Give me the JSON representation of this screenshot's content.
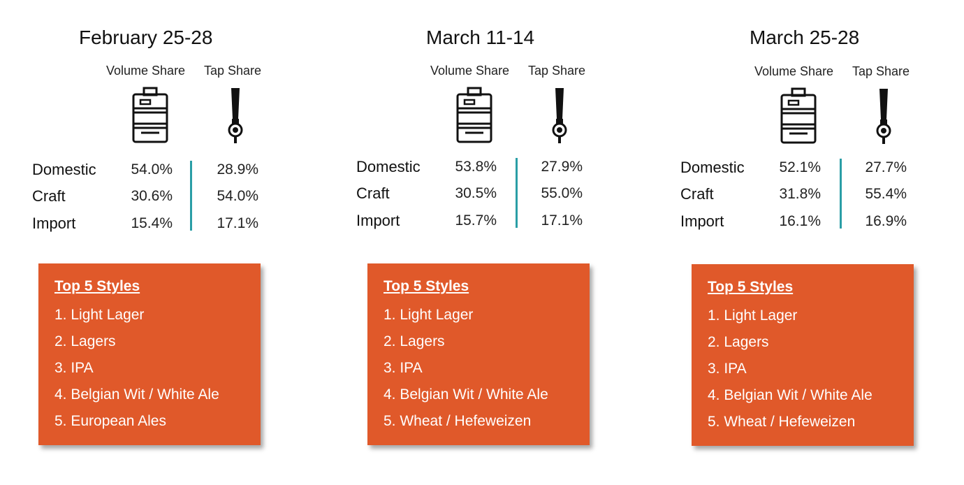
{
  "colors": {
    "accent_box": "#e0592a",
    "divider": "#2a9ea6"
  },
  "icons": {
    "volume": "keg-icon",
    "tap": "beer-tap-handle-icon"
  },
  "periods": [
    {
      "title": "February 25-28",
      "volume_share_label": "Volume Share",
      "tap_share_label": "Tap Share",
      "rows": [
        {
          "label": "Domestic",
          "volume": "54.0%",
          "tap": "28.9%"
        },
        {
          "label": "Craft",
          "volume": "30.6%",
          "tap": "54.0%"
        },
        {
          "label": "Import",
          "volume": "15.4%",
          "tap": "17.1%"
        }
      ],
      "styles_heading": "Top 5 Styles",
      "styles": [
        "1. Light Lager",
        "2. Lagers",
        "3. IPA",
        "4. Belgian Wit / White Ale",
        "5. European Ales"
      ]
    },
    {
      "title": "March 11-14",
      "volume_share_label": "Volume Share",
      "tap_share_label": "Tap Share",
      "rows": [
        {
          "label": "Domestic",
          "volume": "53.8%",
          "tap": "27.9%"
        },
        {
          "label": "Craft",
          "volume": "30.5%",
          "tap": "55.0%"
        },
        {
          "label": "Import",
          "volume": "15.7%",
          "tap": "17.1%"
        }
      ],
      "styles_heading": "Top 5 Styles",
      "styles": [
        "1. Light Lager",
        "2. Lagers",
        "3. IPA",
        "4. Belgian Wit / White Ale",
        "5. Wheat / Hefeweizen"
      ]
    },
    {
      "title": "March 25-28",
      "volume_share_label": "Volume Share",
      "tap_share_label": "Tap Share",
      "rows": [
        {
          "label": "Domestic",
          "volume": "52.1%",
          "tap": "27.7%"
        },
        {
          "label": "Craft",
          "volume": "31.8%",
          "tap": "55.4%"
        },
        {
          "label": "Import",
          "volume": "16.1%",
          "tap": "16.9%"
        }
      ],
      "styles_heading": "Top 5 Styles",
      "styles": [
        "1. Light Lager",
        "2. Lagers",
        "3. IPA",
        "4. Belgian Wit / White Ale",
        "5. Wheat / Hefeweizen"
      ]
    }
  ]
}
